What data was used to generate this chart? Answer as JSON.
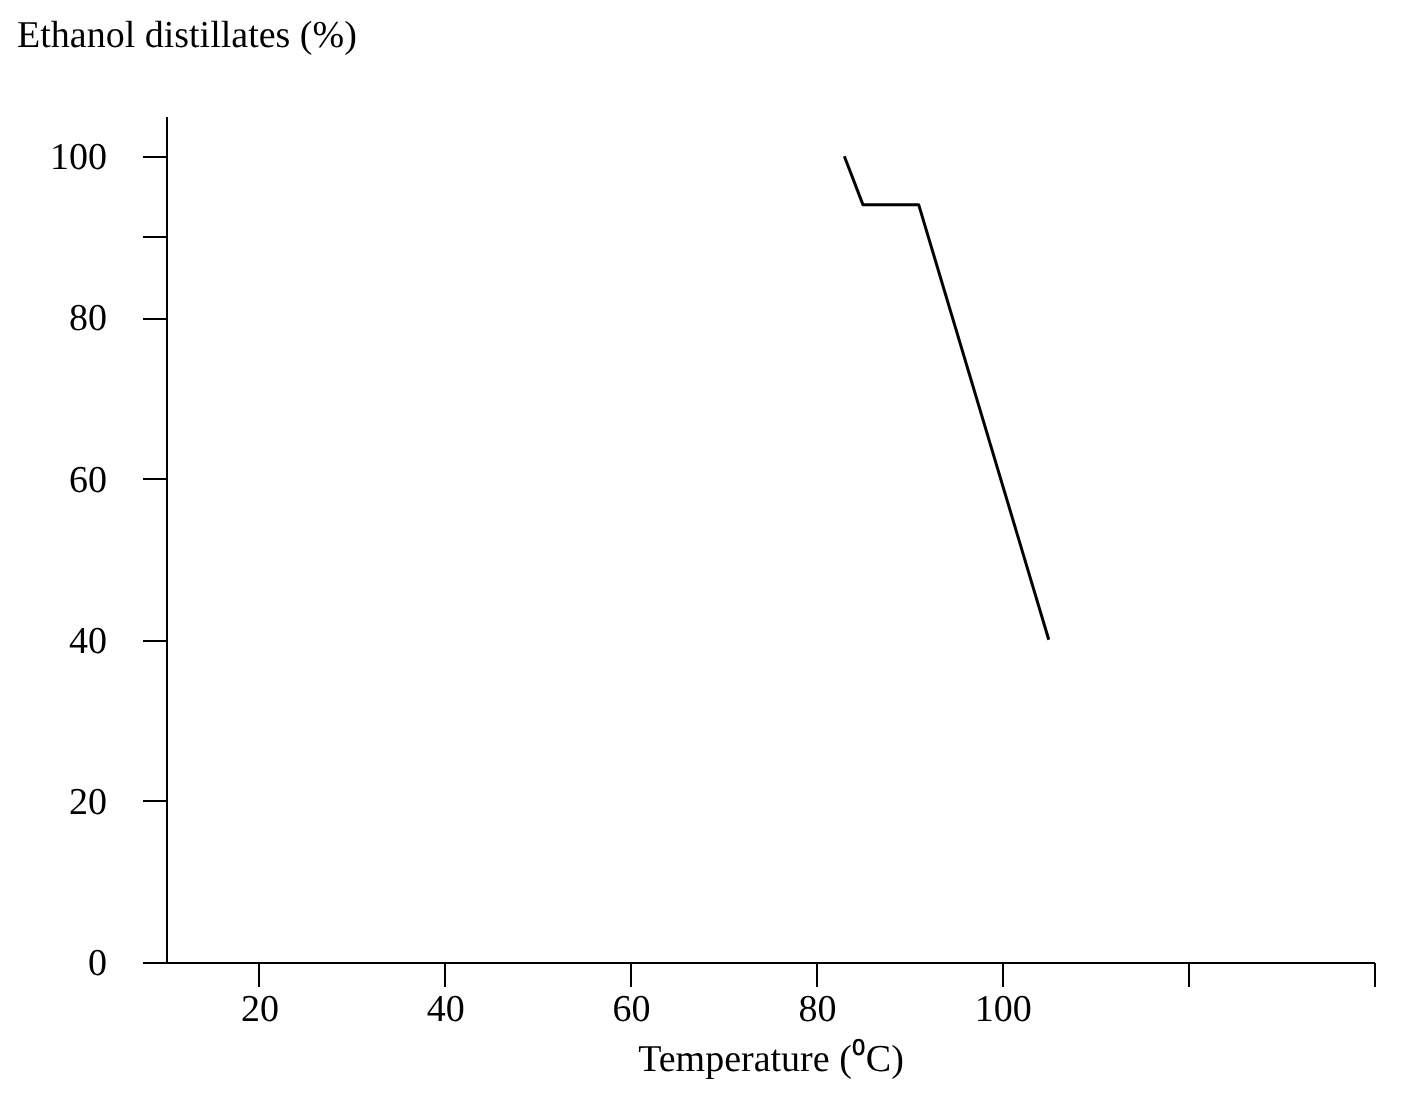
{
  "chart_data": {
    "type": "line",
    "xlabel": "Temperature (⁰C)",
    "ylabel": "Ethanol distillates (%)",
    "x": [
      83,
      85,
      91,
      105
    ],
    "series": [
      {
        "color": "#000000",
        "values": [
          100,
          94,
          94,
          40
        ]
      }
    ],
    "xlim": [
      10,
      140
    ],
    "xticks": [
      20,
      40,
      60,
      80,
      100,
      {
        "value": 120,
        "label": null
      },
      {
        "value": 140,
        "label": null
      }
    ],
    "ylim": [
      0,
      105
    ],
    "yticks": [
      0,
      20,
      40,
      60,
      80,
      {
        "value": 90,
        "label": null
      },
      100
    ],
    "grid": false,
    "legend": false,
    "marker": "none",
    "line_style": "solid"
  }
}
